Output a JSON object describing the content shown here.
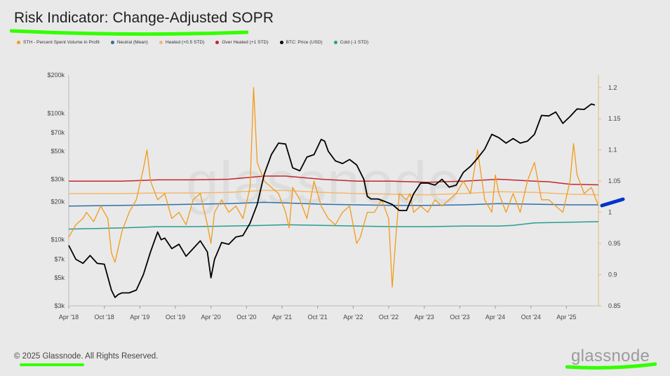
{
  "title": "Risk Indicator: Change-Adjusted SOPR",
  "footer": "© 2025 Glassnode. All Rights Reserved.",
  "brand_logo": "glassnode",
  "watermark": "glassnode",
  "colors": {
    "sth": "#f29b1b",
    "neutral": "#2f6fa8",
    "heated": "#f2b870",
    "overheated": "#c1272d",
    "price": "#000000",
    "cold": "#2a9d8f",
    "marker_green": "#33ff00",
    "marker_blue": "#0033cc"
  },
  "chart_data": {
    "type": "line",
    "title": "Risk Indicator: Change-Adjusted SOPR",
    "legend": [
      {
        "name": "STH - Percent Spent Volume in Profit",
        "color": "#f29b1b"
      },
      {
        "name": "Neutral (Mean)",
        "color": "#2f6fa8"
      },
      {
        "name": "Heated (+0.5 STD)",
        "color": "#f2b870"
      },
      {
        "name": "Over Heated (+1 STD)",
        "color": "#c1272d"
      },
      {
        "name": "BTC: Price (USD)",
        "color": "#000000"
      },
      {
        "name": "Cold (-1 STD)",
        "color": "#2a9d8f"
      }
    ],
    "legend_position": "top-left",
    "x_ticks": [
      "Apr '18",
      "Oct '18",
      "Apr '19",
      "Oct '19",
      "Apr '20",
      "Oct '20",
      "Apr '21",
      "Oct '21",
      "Apr '22",
      "Oct '22",
      "Apr '23",
      "Oct '23",
      "Apr '24",
      "Oct '24",
      "Apr '25"
    ],
    "y_left": {
      "scale": "log",
      "ticks": [
        "$200k",
        "$100k",
        "$70k",
        "$50k",
        "$30k",
        "$20k",
        "$10k",
        "$7k",
        "$5k",
        "$3k"
      ],
      "tick_values": [
        200000,
        100000,
        70000,
        50000,
        30000,
        20000,
        10000,
        7000,
        5000,
        3000
      ],
      "range": [
        3000,
        200000
      ]
    },
    "y_right": {
      "scale": "linear",
      "ticks": [
        "1.2",
        "1.15",
        "1.1",
        "1.05",
        "1",
        "0.95",
        "0.9",
        "0.85"
      ],
      "tick_values": [
        1.2,
        1.15,
        1.1,
        1.05,
        1.0,
        0.95,
        0.9,
        0.85
      ],
      "range": [
        0.85,
        1.22
      ]
    },
    "x_range": [
      2018.25,
      2025.7
    ],
    "series": [
      {
        "name": "BTC: Price (USD)",
        "axis": "left",
        "x": [
          2018.25,
          2018.35,
          2018.45,
          2018.55,
          2018.65,
          2018.75,
          2018.85,
          2018.9,
          2018.95,
          2019.0,
          2019.1,
          2019.2,
          2019.3,
          2019.4,
          2019.5,
          2019.55,
          2019.6,
          2019.7,
          2019.8,
          2019.9,
          2020.0,
          2020.1,
          2020.2,
          2020.25,
          2020.3,
          2020.4,
          2020.5,
          2020.6,
          2020.7,
          2020.8,
          2020.9,
          2021.0,
          2021.1,
          2021.2,
          2021.3,
          2021.4,
          2021.5,
          2021.6,
          2021.7,
          2021.8,
          2021.85,
          2021.9,
          2022.0,
          2022.1,
          2022.2,
          2022.3,
          2022.4,
          2022.45,
          2022.5,
          2022.6,
          2022.7,
          2022.8,
          2022.9,
          2023.0,
          2023.1,
          2023.2,
          2023.3,
          2023.4,
          2023.5,
          2023.6,
          2023.7,
          2023.8,
          2023.9,
          2024.0,
          2024.1,
          2024.2,
          2024.3,
          2024.4,
          2024.5,
          2024.6,
          2024.7,
          2024.8,
          2024.9,
          2025.0,
          2025.1,
          2025.2,
          2025.3,
          2025.4,
          2025.5,
          2025.6,
          2025.65
        ],
        "y": [
          9000,
          7000,
          6500,
          7500,
          6500,
          6400,
          4000,
          3500,
          3700,
          3800,
          3800,
          4000,
          5300,
          8000,
          11500,
          10000,
          10300,
          8500,
          9200,
          7400,
          8500,
          9800,
          8000,
          5000,
          7000,
          9500,
          9200,
          10500,
          10800,
          13500,
          19000,
          33000,
          47000,
          58000,
          57000,
          37000,
          35000,
          45000,
          47000,
          62000,
          60000,
          50000,
          42000,
          40000,
          43000,
          39000,
          30000,
          22000,
          21000,
          21000,
          20000,
          19000,
          17000,
          17000,
          23000,
          28000,
          28000,
          27000,
          30000,
          26000,
          27000,
          34000,
          38000,
          44000,
          52000,
          68000,
          64000,
          58000,
          63000,
          58000,
          60000,
          68000,
          96000,
          95000,
          102000,
          83000,
          94000,
          108000,
          107000,
          118000,
          116000
        ]
      },
      {
        "name": "STH - Percent Spent Volume in Profit",
        "axis": "right",
        "x": [
          2018.25,
          2018.35,
          2018.45,
          2018.5,
          2018.6,
          2018.7,
          2018.8,
          2018.85,
          2018.9,
          2019.0,
          2019.1,
          2019.2,
          2019.3,
          2019.35,
          2019.4,
          2019.5,
          2019.6,
          2019.7,
          2019.8,
          2019.9,
          2020.0,
          2020.1,
          2020.2,
          2020.25,
          2020.3,
          2020.4,
          2020.5,
          2020.6,
          2020.7,
          2020.8,
          2020.85,
          2020.9,
          2021.0,
          2021.1,
          2021.2,
          2021.3,
          2021.35,
          2021.4,
          2021.5,
          2021.6,
          2021.7,
          2021.8,
          2021.9,
          2022.0,
          2022.1,
          2022.2,
          2022.3,
          2022.35,
          2022.45,
          2022.55,
          2022.65,
          2022.75,
          2022.8,
          2022.85,
          2022.9,
          2023.0,
          2023.05,
          2023.1,
          2023.2,
          2023.3,
          2023.4,
          2023.5,
          2023.6,
          2023.7,
          2023.8,
          2023.9,
          2024.0,
          2024.1,
          2024.2,
          2024.25,
          2024.3,
          2024.4,
          2024.5,
          2024.6,
          2024.7,
          2024.8,
          2024.9,
          2025.0,
          2025.1,
          2025.2,
          2025.3,
          2025.35,
          2025.4,
          2025.5,
          2025.6,
          2025.7
        ],
        "y": [
          0.96,
          0.98,
          0.99,
          1.0,
          0.985,
          1.01,
          0.99,
          0.935,
          0.92,
          0.97,
          1.0,
          1.02,
          1.07,
          1.1,
          1.05,
          1.02,
          1.03,
          0.99,
          1.0,
          0.98,
          1.02,
          1.03,
          0.98,
          0.95,
          1.0,
          1.02,
          1.0,
          1.01,
          0.99,
          1.04,
          1.2,
          1.08,
          1.05,
          1.04,
          1.03,
          1.0,
          0.975,
          1.04,
          1.02,
          0.99,
          1.05,
          1.01,
          0.99,
          0.98,
          1.0,
          1.01,
          0.95,
          0.96,
          1.0,
          1.0,
          1.02,
          0.99,
          0.88,
          0.96,
          1.03,
          1.02,
          1.03,
          1.0,
          1.01,
          1.0,
          1.02,
          1.01,
          1.02,
          1.03,
          1.05,
          1.03,
          1.1,
          1.02,
          1.0,
          1.06,
          1.03,
          1.0,
          1.03,
          1.0,
          1.05,
          1.08,
          1.02,
          1.02,
          1.01,
          1.0,
          1.05,
          1.11,
          1.06,
          1.03,
          1.04,
          1.01
        ]
      },
      {
        "name": "Over Heated (+1 STD)",
        "axis": "right",
        "x": [
          2018.25,
          2019.0,
          2019.5,
          2020.0,
          2020.5,
          2021.0,
          2021.3,
          2021.8,
          2022.3,
          2022.8,
          2023.3,
          2023.8,
          2024.3,
          2024.8,
          2025.0,
          2025.3,
          2025.7
        ],
        "y": [
          1.05,
          1.05,
          1.052,
          1.052,
          1.053,
          1.058,
          1.058,
          1.053,
          1.05,
          1.05,
          1.048,
          1.05,
          1.053,
          1.05,
          1.049,
          1.045,
          1.044
        ]
      },
      {
        "name": "Heated (+0.5 STD)",
        "axis": "right",
        "x": [
          2018.25,
          2019.0,
          2019.5,
          2020.0,
          2020.5,
          2021.0,
          2021.3,
          2021.8,
          2022.3,
          2022.8,
          2023.3,
          2023.8,
          2024.3,
          2024.8,
          2025.3,
          2025.7
        ],
        "y": [
          1.03,
          1.03,
          1.031,
          1.031,
          1.032,
          1.035,
          1.035,
          1.032,
          1.03,
          1.029,
          1.028,
          1.03,
          1.033,
          1.032,
          1.029,
          1.028
        ]
      },
      {
        "name": "Neutral (Mean)",
        "axis": "right",
        "x": [
          2018.25,
          2019.0,
          2019.5,
          2020.0,
          2020.5,
          2021.0,
          2021.3,
          2021.8,
          2022.3,
          2022.8,
          2023.3,
          2023.8,
          2024.3,
          2024.8,
          2025.3,
          2025.7
        ],
        "y": [
          1.01,
          1.011,
          1.012,
          1.013,
          1.014,
          1.016,
          1.015,
          1.013,
          1.012,
          1.011,
          1.011,
          1.012,
          1.014,
          1.013,
          1.012,
          1.012
        ]
      },
      {
        "name": "Cold (-1 STD)",
        "axis": "right",
        "x": [
          2018.25,
          2019.0,
          2019.5,
          2020.0,
          2020.5,
          2021.0,
          2021.3,
          2021.8,
          2022.3,
          2022.8,
          2023.3,
          2023.8,
          2024.3,
          2024.5,
          2024.8,
          2025.3,
          2025.7
        ],
        "y": [
          0.973,
          0.975,
          0.977,
          0.977,
          0.978,
          0.979,
          0.98,
          0.979,
          0.978,
          0.977,
          0.977,
          0.978,
          0.978,
          0.979,
          0.983,
          0.984,
          0.985
        ]
      }
    ]
  }
}
